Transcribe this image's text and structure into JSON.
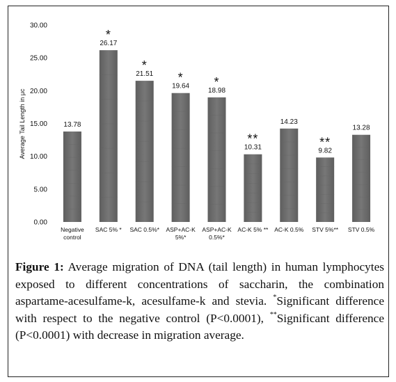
{
  "chart_data": {
    "type": "bar",
    "ylabel": "Average Tail Length in μc",
    "ylim": [
      0,
      30
    ],
    "yticks": [
      "0.00",
      "5.00",
      "10.00",
      "15.00",
      "20.00",
      "25.00",
      "30.00"
    ],
    "grid": false,
    "categories": [
      [
        "Negative",
        "control"
      ],
      [
        "SAC 5% *"
      ],
      [
        "SAC 0.5%*"
      ],
      [
        "ASP+AC-K",
        "5%*"
      ],
      [
        "ASP+AC-K",
        "0.5%*"
      ],
      [
        "AC-K 5% **"
      ],
      [
        "AC-K 0.5%"
      ],
      [
        "STV 5%**"
      ],
      [
        "STV 0.5%"
      ]
    ],
    "values": [
      13.78,
      26.17,
      21.51,
      19.64,
      18.98,
      10.31,
      14.23,
      9.82,
      13.28
    ],
    "value_labels": [
      "13.78",
      "26.17",
      "21.51",
      "19.64",
      "18.98",
      "10.31",
      "14.23",
      "9.82",
      "13.28"
    ],
    "markers": [
      "",
      "*",
      "*",
      "*",
      "*",
      "**",
      "",
      "**",
      ""
    ],
    "bar_color": "#6f6f6f"
  },
  "caption": {
    "label": "Figure 1:",
    "text_1": " Average migration of DNA (tail length) in human lymphocytes exposed to different concentrations of saccharin, the combination aspartame-acesulfame-k, acesulfame-k and stevia.",
    "sup_1": "*",
    "text_2": "Significant difference with respect to the negative control (P<0.0001), ",
    "sup_2": "**",
    "text_3": "Significant difference (P<0.0001) with decrease in migration average."
  }
}
